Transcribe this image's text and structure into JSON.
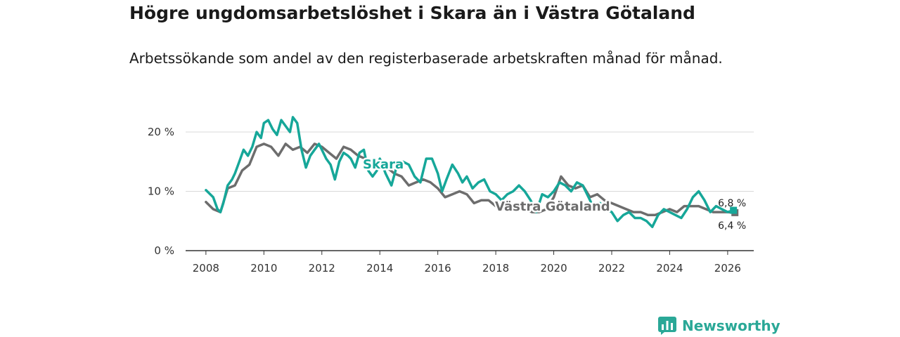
{
  "title": "Högre ungdomsarbetslöshet i Skara än i Västra Götaland",
  "subtitle": "Arbetssökande som andel av den registerbaserade arbetskraften månad för månad.",
  "brand": "Newsworthy",
  "colors": {
    "skara": "#16a799",
    "vg": "#6d6d6d",
    "grid": "#d9d9d9",
    "axis": "#333333",
    "brand": "#2aa897"
  },
  "chart_data": {
    "type": "line",
    "title": "Högre ungdomsarbetslöshet i Skara än i Västra Götaland",
    "xlabel": "",
    "ylabel": "",
    "xlim": [
      2007.3,
      2026.9
    ],
    "ylim": [
      0,
      20
    ],
    "x_ticks": [
      2008,
      2010,
      2012,
      2014,
      2016,
      2018,
      2020,
      2022,
      2024,
      2026
    ],
    "x_tick_labels": [
      "2008",
      "2010",
      "2012",
      "2014",
      "2016",
      "2018",
      "2020",
      "2022",
      "2024",
      "2026"
    ],
    "y_ticks": [
      0,
      10,
      20
    ],
    "y_tick_labels": [
      "0 %",
      "10 %",
      "20 %"
    ],
    "grid": true,
    "series": [
      {
        "name": "Skara",
        "label": "Skara",
        "end_label": "6,8 %",
        "x": [
          2008.0,
          2008.25,
          2008.4,
          2008.5,
          2008.6,
          2008.75,
          2008.9,
          2009.0,
          2009.15,
          2009.3,
          2009.45,
          2009.6,
          2009.75,
          2009.9,
          2010.0,
          2010.15,
          2010.3,
          2010.45,
          2010.6,
          2010.75,
          2010.9,
          2011.0,
          2011.15,
          2011.3,
          2011.45,
          2011.6,
          2011.75,
          2011.9,
          2012.0,
          2012.15,
          2012.3,
          2012.45,
          2012.6,
          2012.75,
          2012.9,
          2013.0,
          2013.15,
          2013.3,
          2013.45,
          2013.6,
          2013.75,
          2013.9,
          2014.0,
          2014.2,
          2014.4,
          2014.6,
          2014.8,
          2015.0,
          2015.2,
          2015.4,
          2015.6,
          2015.8,
          2016.0,
          2016.15,
          2016.3,
          2016.5,
          2016.7,
          2016.85,
          2017.0,
          2017.2,
          2017.4,
          2017.6,
          2017.8,
          2018.0,
          2018.2,
          2018.4,
          2018.6,
          2018.8,
          2019.0,
          2019.2,
          2019.4,
          2019.6,
          2019.8,
          2020.0,
          2020.2,
          2020.4,
          2020.6,
          2020.8,
          2021.0,
          2021.2,
          2021.4,
          2021.6,
          2021.8,
          2022.0,
          2022.2,
          2022.4,
          2022.6,
          2022.8,
          2023.0,
          2023.2,
          2023.4,
          2023.6,
          2023.8,
          2024.0,
          2024.2,
          2024.4,
          2024.6,
          2024.8,
          2025.0,
          2025.2,
          2025.4,
          2025.6,
          2025.8,
          2026.0,
          2026.2
        ],
        "values": [
          10.2,
          9.0,
          7.0,
          6.5,
          8.0,
          11.0,
          12.0,
          13.0,
          15.0,
          17.0,
          16.0,
          17.5,
          20.0,
          19.0,
          21.5,
          22.0,
          20.5,
          19.5,
          22.0,
          21.0,
          20.0,
          22.5,
          21.5,
          17.0,
          14.0,
          16.0,
          17.0,
          18.0,
          17.0,
          15.5,
          14.5,
          12.0,
          15.0,
          16.5,
          16.0,
          15.5,
          14.0,
          16.5,
          17.0,
          13.5,
          12.5,
          13.5,
          15.5,
          13.0,
          11.0,
          14.5,
          15.0,
          14.5,
          12.5,
          11.5,
          15.5,
          15.5,
          13.0,
          10.0,
          12.0,
          14.5,
          13.0,
          11.5,
          12.5,
          10.5,
          11.5,
          12.0,
          10.0,
          9.5,
          8.5,
          9.5,
          10.0,
          11.0,
          10.0,
          8.5,
          6.5,
          9.5,
          9.0,
          10.0,
          11.5,
          11.0,
          10.0,
          11.5,
          11.0,
          9.0,
          7.0,
          8.0,
          7.0,
          6.5,
          5.0,
          6.0,
          6.5,
          5.5,
          5.5,
          5.0,
          4.0,
          6.0,
          7.0,
          6.5,
          6.0,
          5.5,
          7.0,
          9.0,
          10.0,
          8.5,
          6.5,
          7.5,
          7.0,
          6.5,
          6.8
        ]
      },
      {
        "name": "Västra Götaland",
        "label": "Västra Götaland",
        "end_label": "6,4 %",
        "x": [
          2008.0,
          2008.25,
          2008.5,
          2008.75,
          2009.0,
          2009.25,
          2009.5,
          2009.75,
          2010.0,
          2010.25,
          2010.5,
          2010.75,
          2011.0,
          2011.25,
          2011.5,
          2011.75,
          2012.0,
          2012.25,
          2012.5,
          2012.75,
          2013.0,
          2013.25,
          2013.5,
          2013.75,
          2014.0,
          2014.25,
          2014.5,
          2014.75,
          2015.0,
          2015.25,
          2015.5,
          2015.75,
          2016.0,
          2016.25,
          2016.5,
          2016.75,
          2017.0,
          2017.25,
          2017.5,
          2017.75,
          2018.0,
          2018.25,
          2018.5,
          2018.75,
          2019.0,
          2019.25,
          2019.5,
          2019.75,
          2020.0,
          2020.25,
          2020.5,
          2020.75,
          2021.0,
          2021.25,
          2021.5,
          2021.75,
          2022.0,
          2022.25,
          2022.5,
          2022.75,
          2023.0,
          2023.25,
          2023.5,
          2023.75,
          2024.0,
          2024.25,
          2024.5,
          2024.75,
          2025.0,
          2025.25,
          2025.5,
          2025.75,
          2026.0,
          2026.25
        ],
        "values": [
          8.2,
          7.0,
          6.5,
          10.5,
          11.0,
          13.5,
          14.5,
          17.5,
          18.0,
          17.5,
          16.0,
          18.0,
          17.0,
          17.5,
          16.5,
          18.0,
          17.5,
          16.5,
          15.5,
          17.5,
          17.0,
          16.0,
          15.5,
          14.5,
          14.5,
          14.0,
          13.0,
          12.5,
          11.0,
          11.5,
          12.0,
          11.5,
          10.5,
          9.0,
          9.5,
          10.0,
          9.5,
          8.0,
          8.5,
          8.5,
          7.5,
          7.0,
          7.5,
          7.0,
          7.0,
          6.5,
          6.5,
          7.0,
          9.0,
          12.5,
          11.0,
          10.5,
          11.0,
          9.0,
          9.5,
          8.5,
          8.0,
          7.5,
          7.0,
          6.5,
          6.5,
          6.0,
          6.0,
          6.5,
          7.0,
          6.5,
          7.5,
          7.5,
          7.5,
          7.0,
          6.5,
          6.5,
          6.5,
          6.4
        ]
      }
    ]
  }
}
